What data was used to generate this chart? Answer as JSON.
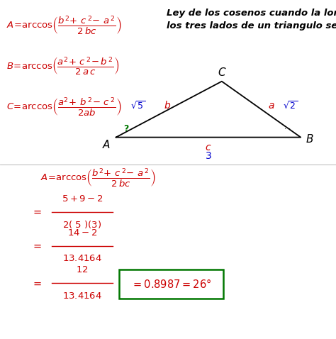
{
  "background_color": "#ffffff",
  "red": "#cc0000",
  "blue": "#0000cc",
  "green": "#007700",
  "black": "#000000",
  "figsize": [
    4.74,
    4.78
  ],
  "dpi": 100,
  "title": "Ley de los cosenos cuando la longitud de\nlos tres lados de un triangulo se conocen",
  "triangle": {
    "A": [
      0.345,
      0.595
    ],
    "B": [
      0.895,
      0.595
    ],
    "C": [
      0.66,
      0.76
    ]
  }
}
